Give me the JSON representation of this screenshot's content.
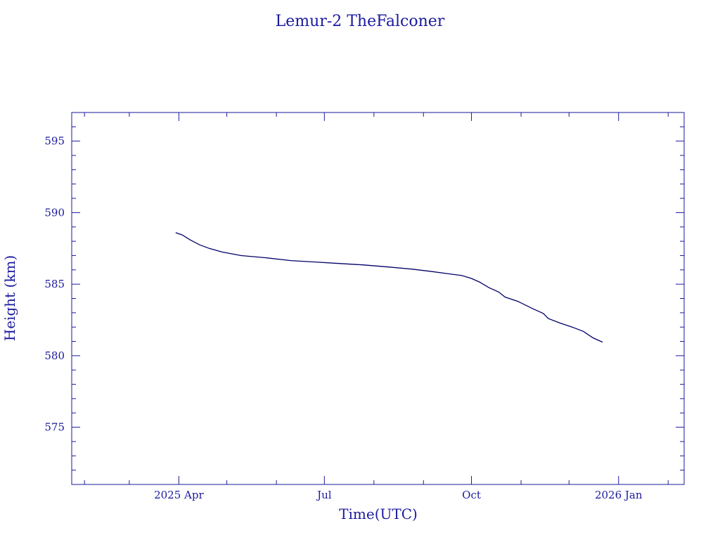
{
  "chart_data": {
    "type": "line",
    "title": "Lemur-2 TheFalconer",
    "xlabel": "Time(UTC)",
    "ylabel": "Height (km)",
    "colors": {
      "axes": "#1a1a9e",
      "line": "#000066",
      "background": "#ffffff"
    },
    "xlim": [
      "2025-01-24",
      "2026-02-11"
    ],
    "ylim": [
      571,
      597
    ],
    "x_ticks": [
      {
        "date": "2025-04-01",
        "label": "2025 Apr"
      },
      {
        "date": "2025-07-01",
        "label": "Jul"
      },
      {
        "date": "2025-10-01",
        "label": "Oct"
      },
      {
        "date": "2026-01-01",
        "label": "2026 Jan"
      }
    ],
    "x_minor_ticks": [
      "2025-02-01",
      "2025-03-01",
      "2025-05-01",
      "2025-06-01",
      "2025-08-01",
      "2025-09-01",
      "2025-11-01",
      "2025-12-01",
      "2026-02-01"
    ],
    "y_ticks": [
      575,
      580,
      585,
      590,
      595
    ],
    "y_minor_step": 1,
    "grid": false,
    "series": [
      {
        "x": [
          "2025-03-30",
          "2025-04-03",
          "2025-04-08",
          "2025-04-14",
          "2025-04-20",
          "2025-04-28",
          "2025-05-10",
          "2025-05-25",
          "2025-06-10",
          "2025-06-25",
          "2025-07-10",
          "2025-07-25",
          "2025-08-10",
          "2025-08-25",
          "2025-09-05",
          "2025-09-15",
          "2025-09-25",
          "2025-10-01",
          "2025-10-06",
          "2025-10-12",
          "2025-10-18",
          "2025-10-22",
          "2025-10-30",
          "2025-11-08",
          "2025-11-15",
          "2025-11-18",
          "2025-11-25",
          "2025-12-03",
          "2025-12-10",
          "2025-12-16",
          "2025-12-22"
        ],
        "values": [
          588.6,
          588.45,
          588.1,
          587.75,
          587.5,
          587.25,
          587.0,
          586.85,
          586.65,
          586.55,
          586.45,
          586.35,
          586.2,
          586.05,
          585.9,
          585.75,
          585.6,
          585.4,
          585.15,
          584.75,
          584.45,
          584.1,
          583.8,
          583.3,
          582.95,
          582.6,
          582.3,
          582.0,
          581.7,
          581.25,
          580.95
        ]
      }
    ]
  }
}
